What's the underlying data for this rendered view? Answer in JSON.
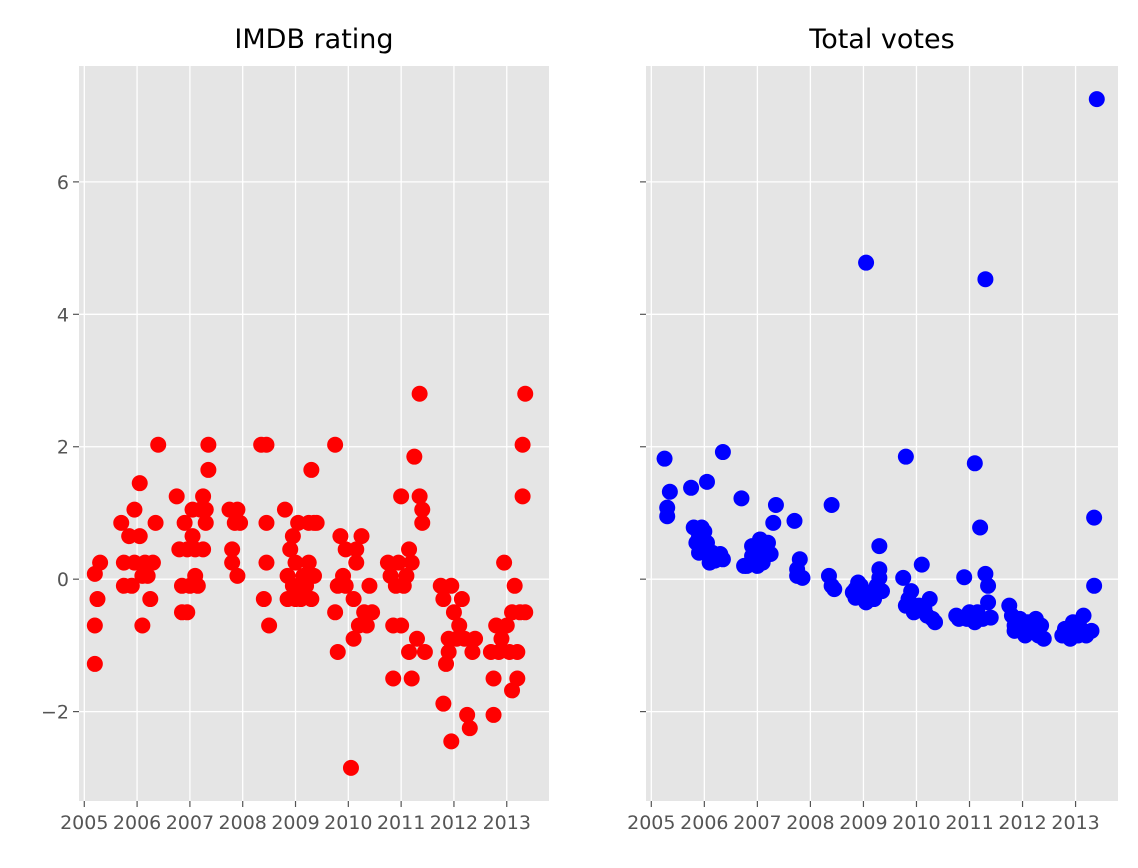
{
  "chart_data": [
    {
      "type": "scatter",
      "title": "IMDB rating",
      "xlabel": "",
      "ylabel": "",
      "xlim": [
        2004.9,
        2013.8
      ],
      "ylim": [
        -3.35,
        7.75
      ],
      "x_ticks": [
        2005,
        2006,
        2007,
        2008,
        2009,
        2010,
        2011,
        2012,
        2013
      ],
      "x_tick_labels": [
        "2005",
        "2006",
        "2007",
        "2008",
        "2009",
        "2010",
        "2011",
        "2012",
        "2013"
      ],
      "y_ticks": [
        -2,
        0,
        2,
        4,
        6
      ],
      "y_tick_labels": [
        "−2",
        "0",
        "2",
        "4",
        "6"
      ],
      "grid": true,
      "marker_color": "#ff0000",
      "points": [
        [
          2005.2,
          0.08
        ],
        [
          2005.2,
          -0.7
        ],
        [
          2005.2,
          -1.28
        ],
        [
          2005.25,
          -0.3
        ],
        [
          2005.3,
          0.25
        ],
        [
          2005.7,
          0.85
        ],
        [
          2005.75,
          0.25
        ],
        [
          2005.75,
          -0.1
        ],
        [
          2005.85,
          0.65
        ],
        [
          2005.9,
          -0.1
        ],
        [
          2005.95,
          1.05
        ],
        [
          2005.95,
          0.25
        ],
        [
          2006.05,
          1.45
        ],
        [
          2006.05,
          0.65
        ],
        [
          2006.1,
          0.05
        ],
        [
          2006.1,
          -0.7
        ],
        [
          2006.15,
          0.25
        ],
        [
          2006.2,
          0.05
        ],
        [
          2006.25,
          -0.3
        ],
        [
          2006.3,
          0.25
        ],
        [
          2006.35,
          0.85
        ],
        [
          2006.4,
          2.03
        ],
        [
          2006.75,
          1.25
        ],
        [
          2006.8,
          0.45
        ],
        [
          2006.85,
          -0.5
        ],
        [
          2006.85,
          -0.1
        ],
        [
          2006.9,
          0.85
        ],
        [
          2006.95,
          -0.5
        ],
        [
          2006.95,
          0.45
        ],
        [
          2007.0,
          -0.1
        ],
        [
          2007.05,
          0.65
        ],
        [
          2007.05,
          1.05
        ],
        [
          2007.1,
          0.45
        ],
        [
          2007.1,
          0.05
        ],
        [
          2007.15,
          -0.1
        ],
        [
          2007.2,
          1.05
        ],
        [
          2007.25,
          1.25
        ],
        [
          2007.25,
          0.45
        ],
        [
          2007.3,
          0.85
        ],
        [
          2007.3,
          1.05
        ],
        [
          2007.35,
          1.65
        ],
        [
          2007.35,
          2.03
        ],
        [
          2007.75,
          1.05
        ],
        [
          2007.8,
          0.45
        ],
        [
          2007.8,
          0.25
        ],
        [
          2007.85,
          0.85
        ],
        [
          2007.9,
          1.05
        ],
        [
          2007.9,
          0.05
        ],
        [
          2007.95,
          0.85
        ],
        [
          2008.35,
          2.03
        ],
        [
          2008.4,
          -0.3
        ],
        [
          2008.45,
          2.03
        ],
        [
          2008.45,
          0.85
        ],
        [
          2008.45,
          0.25
        ],
        [
          2008.5,
          -0.7
        ],
        [
          2008.8,
          1.05
        ],
        [
          2008.85,
          0.05
        ],
        [
          2008.85,
          -0.3
        ],
        [
          2008.9,
          0.45
        ],
        [
          2008.95,
          0.65
        ],
        [
          2008.95,
          -0.1
        ],
        [
          2009.0,
          0.25
        ],
        [
          2009.0,
          -0.3
        ],
        [
          2009.05,
          0.85
        ],
        [
          2009.05,
          -0.1
        ],
        [
          2009.1,
          -0.3
        ],
        [
          2009.15,
          0.05
        ],
        [
          2009.2,
          -0.1
        ],
        [
          2009.25,
          0.25
        ],
        [
          2009.25,
          0.85
        ],
        [
          2009.3,
          -0.3
        ],
        [
          2009.3,
          1.65
        ],
        [
          2009.35,
          0.85
        ],
        [
          2009.35,
          0.05
        ],
        [
          2009.4,
          0.85
        ],
        [
          2009.75,
          2.03
        ],
        [
          2009.75,
          -0.5
        ],
        [
          2009.8,
          -1.1
        ],
        [
          2009.8,
          -0.1
        ],
        [
          2009.85,
          0.65
        ],
        [
          2009.9,
          0.05
        ],
        [
          2009.95,
          0.45
        ],
        [
          2009.95,
          -0.1
        ],
        [
          2010.05,
          -2.85
        ],
        [
          2010.1,
          -0.3
        ],
        [
          2010.1,
          -0.9
        ],
        [
          2010.15,
          0.45
        ],
        [
          2010.15,
          0.25
        ],
        [
          2010.2,
          -0.7
        ],
        [
          2010.25,
          0.65
        ],
        [
          2010.3,
          -0.5
        ],
        [
          2010.35,
          -0.7
        ],
        [
          2010.4,
          -0.1
        ],
        [
          2010.45,
          -0.5
        ],
        [
          2010.75,
          0.25
        ],
        [
          2010.8,
          0.05
        ],
        [
          2010.85,
          -0.7
        ],
        [
          2010.85,
          -1.5
        ],
        [
          2010.9,
          -0.1
        ],
        [
          2010.95,
          0.25
        ],
        [
          2011.0,
          1.25
        ],
        [
          2011.0,
          -0.7
        ],
        [
          2011.05,
          -0.1
        ],
        [
          2011.1,
          0.05
        ],
        [
          2011.15,
          0.45
        ],
        [
          2011.15,
          -1.1
        ],
        [
          2011.2,
          0.25
        ],
        [
          2011.2,
          -1.5
        ],
        [
          2011.25,
          1.85
        ],
        [
          2011.3,
          -0.9
        ],
        [
          2011.35,
          2.8
        ],
        [
          2011.35,
          1.25
        ],
        [
          2011.4,
          0.85
        ],
        [
          2011.4,
          1.05
        ],
        [
          2011.45,
          -1.1
        ],
        [
          2011.75,
          -0.1
        ],
        [
          2011.8,
          -0.3
        ],
        [
          2011.8,
          -1.88
        ],
        [
          2011.85,
          -1.28
        ],
        [
          2011.9,
          -0.9
        ],
        [
          2011.9,
          -1.1
        ],
        [
          2011.95,
          -2.45
        ],
        [
          2011.95,
          -0.1
        ],
        [
          2012.0,
          -0.5
        ],
        [
          2012.05,
          -0.9
        ],
        [
          2012.1,
          -0.7
        ],
        [
          2012.15,
          -0.3
        ],
        [
          2012.2,
          -0.9
        ],
        [
          2012.25,
          -2.05
        ],
        [
          2012.3,
          -2.25
        ],
        [
          2012.35,
          -1.1
        ],
        [
          2012.4,
          -0.9
        ],
        [
          2012.7,
          -1.1
        ],
        [
          2012.75,
          -2.05
        ],
        [
          2012.75,
          -1.5
        ],
        [
          2012.8,
          -0.7
        ],
        [
          2012.85,
          -1.1
        ],
        [
          2012.9,
          -0.9
        ],
        [
          2012.95,
          0.25
        ],
        [
          2013.0,
          -0.7
        ],
        [
          2013.05,
          -1.1
        ],
        [
          2013.1,
          -0.5
        ],
        [
          2013.1,
          -1.68
        ],
        [
          2013.15,
          -0.1
        ],
        [
          2013.2,
          -1.1
        ],
        [
          2013.2,
          -1.5
        ],
        [
          2013.25,
          -0.5
        ],
        [
          2013.3,
          1.25
        ],
        [
          2013.3,
          2.03
        ],
        [
          2013.35,
          2.8
        ],
        [
          2013.35,
          -0.5
        ]
      ]
    },
    {
      "type": "scatter",
      "title": "Total votes",
      "xlabel": "",
      "ylabel": "",
      "xlim": [
        2004.9,
        2013.8
      ],
      "ylim": [
        -3.35,
        7.75
      ],
      "x_ticks": [
        2005,
        2006,
        2007,
        2008,
        2009,
        2010,
        2011,
        2012,
        2013
      ],
      "x_tick_labels": [
        "2005",
        "2006",
        "2007",
        "2008",
        "2009",
        "2010",
        "2011",
        "2012",
        "2013"
      ],
      "y_ticks": [
        -2,
        0,
        2,
        4,
        6
      ],
      "y_tick_labels": [],
      "grid": true,
      "marker_color": "#0000ff",
      "points": [
        [
          2005.25,
          1.82
        ],
        [
          2005.3,
          1.08
        ],
        [
          2005.3,
          0.95
        ],
        [
          2005.35,
          1.32
        ],
        [
          2005.75,
          1.38
        ],
        [
          2005.8,
          0.78
        ],
        [
          2005.85,
          0.55
        ],
        [
          2005.9,
          0.65
        ],
        [
          2005.9,
          0.4
        ],
        [
          2005.95,
          0.78
        ],
        [
          2006.0,
          0.72
        ],
        [
          2006.05,
          1.47
        ],
        [
          2006.05,
          0.55
        ],
        [
          2006.1,
          0.35
        ],
        [
          2006.1,
          0.25
        ],
        [
          2006.15,
          0.4
        ],
        [
          2006.2,
          0.28
        ],
        [
          2006.25,
          0.35
        ],
        [
          2006.3,
          0.38
        ],
        [
          2006.35,
          1.92
        ],
        [
          2006.35,
          0.3
        ],
        [
          2006.7,
          1.22
        ],
        [
          2006.75,
          0.2
        ],
        [
          2006.8,
          0.2
        ],
        [
          2006.85,
          0.22
        ],
        [
          2006.9,
          0.35
        ],
        [
          2006.9,
          0.5
        ],
        [
          2006.95,
          0.25
        ],
        [
          2007.0,
          0.4
        ],
        [
          2007.0,
          0.2
        ],
        [
          2007.05,
          0.6
        ],
        [
          2007.05,
          0.3
        ],
        [
          2007.1,
          0.25
        ],
        [
          2007.1,
          0.5
        ],
        [
          2007.15,
          0.45
        ],
        [
          2007.2,
          0.55
        ],
        [
          2007.25,
          0.38
        ],
        [
          2007.3,
          0.85
        ],
        [
          2007.35,
          1.12
        ],
        [
          2007.7,
          0.88
        ],
        [
          2007.75,
          0.15
        ],
        [
          2007.75,
          0.05
        ],
        [
          2007.8,
          0.3
        ],
        [
          2007.85,
          0.02
        ],
        [
          2008.35,
          0.05
        ],
        [
          2008.4,
          -0.1
        ],
        [
          2008.4,
          1.12
        ],
        [
          2008.45,
          -0.15
        ],
        [
          2008.8,
          -0.2
        ],
        [
          2008.85,
          -0.15
        ],
        [
          2008.85,
          -0.28
        ],
        [
          2008.9,
          -0.05
        ],
        [
          2008.95,
          -0.1
        ],
        [
          2009.0,
          -0.2
        ],
        [
          2009.05,
          -0.35
        ],
        [
          2009.05,
          4.78
        ],
        [
          2009.1,
          -0.25
        ],
        [
          2009.15,
          -0.2
        ],
        [
          2009.2,
          -0.3
        ],
        [
          2009.25,
          -0.1
        ],
        [
          2009.3,
          0.5
        ],
        [
          2009.3,
          0.02
        ],
        [
          2009.3,
          0.15
        ],
        [
          2009.35,
          -0.18
        ],
        [
          2009.75,
          0.02
        ],
        [
          2009.8,
          1.85
        ],
        [
          2009.8,
          -0.4
        ],
        [
          2009.85,
          -0.3
        ],
        [
          2009.9,
          -0.18
        ],
        [
          2009.95,
          -0.5
        ],
        [
          2010.05,
          -0.4
        ],
        [
          2010.1,
          0.22
        ],
        [
          2010.15,
          -0.45
        ],
        [
          2010.2,
          -0.55
        ],
        [
          2010.25,
          -0.3
        ],
        [
          2010.3,
          -0.6
        ],
        [
          2010.35,
          -0.65
        ],
        [
          2010.75,
          -0.55
        ],
        [
          2010.8,
          -0.6
        ],
        [
          2010.85,
          -0.58
        ],
        [
          2010.9,
          0.03
        ],
        [
          2010.95,
          -0.6
        ],
        [
          2011.0,
          -0.5
        ],
        [
          2011.05,
          -0.55
        ],
        [
          2011.1,
          1.75
        ],
        [
          2011.1,
          -0.65
        ],
        [
          2011.15,
          -0.5
        ],
        [
          2011.2,
          0.78
        ],
        [
          2011.25,
          -0.6
        ],
        [
          2011.3,
          0.08
        ],
        [
          2011.3,
          4.53
        ],
        [
          2011.35,
          -0.35
        ],
        [
          2011.35,
          -0.1
        ],
        [
          2011.4,
          -0.58
        ],
        [
          2011.75,
          -0.4
        ],
        [
          2011.8,
          -0.55
        ],
        [
          2011.85,
          -0.7
        ],
        [
          2011.85,
          -0.78
        ],
        [
          2011.9,
          -0.65
        ],
        [
          2011.95,
          -0.6
        ],
        [
          2012.0,
          -0.7
        ],
        [
          2012.05,
          -0.85
        ],
        [
          2012.1,
          -0.65
        ],
        [
          2012.15,
          -0.8
        ],
        [
          2012.2,
          -0.75
        ],
        [
          2012.25,
          -0.6
        ],
        [
          2012.3,
          -0.85
        ],
        [
          2012.35,
          -0.7
        ],
        [
          2012.4,
          -0.9
        ],
        [
          2012.75,
          -0.85
        ],
        [
          2012.8,
          -0.75
        ],
        [
          2012.85,
          -0.8
        ],
        [
          2012.9,
          -0.9
        ],
        [
          2012.95,
          -0.65
        ],
        [
          2013.0,
          -0.8
        ],
        [
          2013.05,
          -0.85
        ],
        [
          2013.1,
          -0.75
        ],
        [
          2013.15,
          -0.55
        ],
        [
          2013.2,
          -0.85
        ],
        [
          2013.25,
          -0.8
        ],
        [
          2013.3,
          -0.78
        ],
        [
          2013.35,
          -0.1
        ],
        [
          2013.35,
          0.93
        ],
        [
          2013.4,
          7.25
        ]
      ]
    }
  ]
}
